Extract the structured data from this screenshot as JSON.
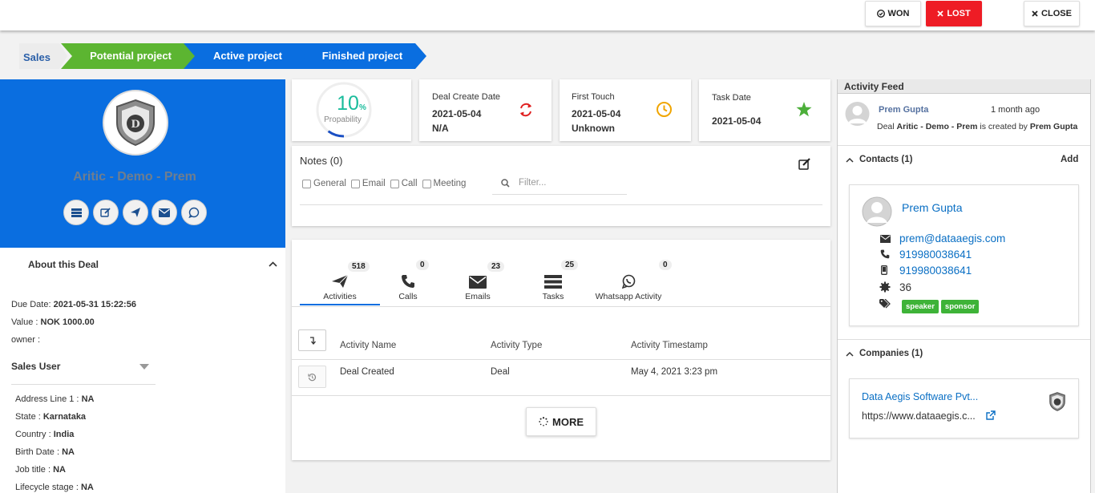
{
  "topbar": {
    "won_label": "WON",
    "lost_label": "LOST",
    "close_label": "CLOSE"
  },
  "pipeline": {
    "first": "Sales",
    "stages": [
      "Potential project",
      "Active project",
      "Finished project"
    ]
  },
  "deal": {
    "name": "Aritic - Demo - Prem"
  },
  "about": {
    "title": "About this Deal",
    "due_label": "Due Date:",
    "due_value": "2021-05-31 15:22:56",
    "value_label": "Value :",
    "value_value": "NOK 1000.00",
    "owner_label": "owner :",
    "owner_select": "Sales User",
    "fields": [
      {
        "label": "Address Line 1 :",
        "value": "NA"
      },
      {
        "label": "State :",
        "value": "Karnataka"
      },
      {
        "label": "Country :",
        "value": "India"
      },
      {
        "label": "Birth Date :",
        "value": "NA"
      },
      {
        "label": "Job title :",
        "value": "NA"
      },
      {
        "label": "Lifecycle stage :",
        "value": "NA"
      }
    ]
  },
  "stats": {
    "probability_value": "10",
    "probability_unit": "%",
    "probability_label": "Propability",
    "probability_fraction": 0.1,
    "deal_create_label": "Deal Create Date",
    "deal_create_value": "2021-05-04",
    "deal_create_sub": "N/A",
    "first_touch_label": "First Touch",
    "first_touch_value": "2021-05-04",
    "first_touch_sub": "Unknown",
    "task_date_label": "Task Date",
    "task_date_value": "2021-05-04"
  },
  "notes": {
    "title": "Notes (0)",
    "filters": [
      "General",
      "Email",
      "Call",
      "Meeting"
    ],
    "filter_placeholder": "Filter..."
  },
  "tabs": [
    {
      "label": "Activities",
      "count": "518"
    },
    {
      "label": "Calls",
      "count": "0"
    },
    {
      "label": "Emails",
      "count": "23"
    },
    {
      "label": "Tasks",
      "count": "25"
    },
    {
      "label": "Whatsapp Activity",
      "count": "0"
    }
  ],
  "table": {
    "headers": [
      "Activity Name",
      "Activity Type",
      "Activity Timestamp"
    ],
    "rows": [
      {
        "name": "Deal Created",
        "type": "Deal",
        "timestamp": "May 4, 2021 3:23 pm"
      }
    ],
    "more_label": "MORE"
  },
  "feed": {
    "title": "Activity Feed",
    "author": "Prem Gupta",
    "time": "1 month ago",
    "text_prefix": "Deal",
    "text_deal": "Aritic - Demo - Prem",
    "text_mid": "is created by",
    "text_author": "Prem Gupta"
  },
  "contacts": {
    "title": "Contacts (1)",
    "add_label": "Add",
    "name": "Prem Gupta",
    "email": "prem@dataaegis.com",
    "phone": "919980038641",
    "mobile": "919980038641",
    "score": "36",
    "tags": [
      "speaker",
      "sponsor"
    ]
  },
  "companies": {
    "title": "Companies (1)",
    "name": "Data Aegis Software Pvt...",
    "url": "https://www.dataaegis.c..."
  },
  "colors": {
    "brand_blue": "#0a6ee0",
    "green": "#5cb531",
    "red": "#ee1c25"
  }
}
